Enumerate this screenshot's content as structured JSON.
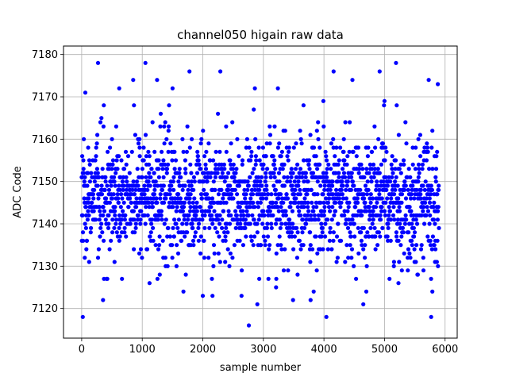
{
  "chart_data": {
    "type": "scatter",
    "title": "channel050 higain raw data",
    "xlabel": "sample number",
    "ylabel": "ADC Code",
    "xlim": [
      -300,
      6200
    ],
    "ylim": [
      7113,
      7182
    ],
    "xticks": [
      0,
      1000,
      2000,
      3000,
      4000,
      5000,
      6000
    ],
    "yticks": [
      7120,
      7130,
      7140,
      7150,
      7160,
      7170,
      7180
    ],
    "grid": true,
    "legend": false,
    "series": [
      {
        "color": "#0000ff",
        "marker": "circle",
        "n_points": 5900,
        "x_range": [
          0,
          5899
        ],
        "typical_range": [
          7133,
          7160
        ],
        "center": 7146,
        "points": [
          [
            18,
            7118
          ],
          [
            270,
            7178
          ],
          [
            352,
            7122
          ],
          [
            1052,
            7178
          ],
          [
            1245,
            7174
          ],
          [
            1780,
            7176
          ],
          [
            2290,
            7176
          ],
          [
            2760,
            7116
          ],
          [
            2900,
            7121
          ],
          [
            3490,
            7122
          ],
          [
            3780,
            7122
          ],
          [
            4040,
            7118
          ],
          [
            4160,
            7176
          ],
          [
            4650,
            7121
          ],
          [
            4920,
            7176
          ],
          [
            5190,
            7178
          ],
          [
            5770,
            7118
          ],
          [
            5880,
            7173
          ],
          [
            5730,
            7174
          ],
          [
            620,
            7172
          ],
          [
            850,
            7174
          ],
          [
            1500,
            7172
          ],
          [
            3240,
            7172
          ],
          [
            3990,
            7169
          ],
          [
            5000,
            7169
          ],
          [
            60,
            7171
          ],
          [
            2860,
            7172
          ],
          [
            4470,
            7174
          ],
          [
            2000,
            7123
          ],
          [
            2160,
            7123
          ],
          [
            2640,
            7123
          ],
          [
            3210,
            7125
          ],
          [
            5790,
            7124
          ],
          [
            5230,
            7126
          ],
          [
            1120,
            7126
          ],
          [
            4700,
            7124
          ],
          [
            1680,
            7124
          ],
          [
            3830,
            7124
          ]
        ]
      }
    ]
  }
}
